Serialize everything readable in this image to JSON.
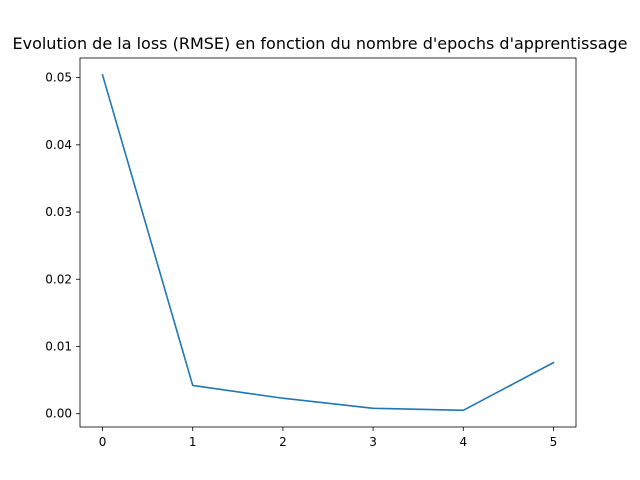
{
  "chart_data": {
    "type": "line",
    "title": "Evolution de la loss (RMSE) en fonction du nombre d'epochs d'apprentissage",
    "xlabel": "",
    "ylabel": "",
    "x": [
      0,
      1,
      2,
      3,
      4,
      5
    ],
    "series": [
      {
        "values": [
          0.0504,
          0.0042,
          0.0023,
          0.0008,
          0.0005,
          0.0076
        ],
        "color": "#1f77b4"
      }
    ],
    "xlim": [
      -0.25,
      5.25
    ],
    "ylim": [
      -0.00198,
      0.05292
    ],
    "x_ticks": [
      0,
      1,
      2,
      3,
      4,
      5
    ],
    "x_tick_labels": [
      "0",
      "1",
      "2",
      "3",
      "4",
      "5"
    ],
    "y_ticks": [
      0.0,
      0.01,
      0.02,
      0.03,
      0.04,
      0.05
    ],
    "y_tick_labels": [
      "0.00",
      "0.01",
      "0.02",
      "0.03",
      "0.04",
      "0.05"
    ],
    "grid": false,
    "legend": "none"
  }
}
